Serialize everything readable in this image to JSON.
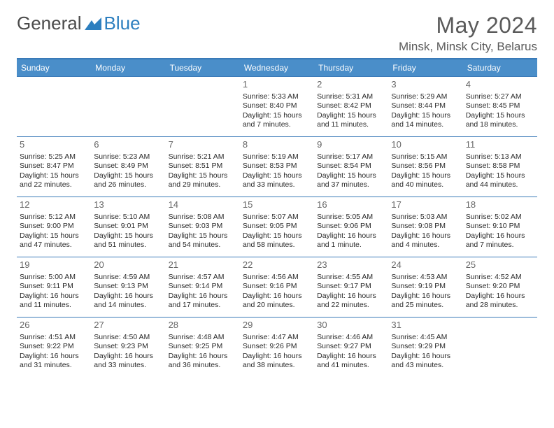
{
  "brand": {
    "part1": "General",
    "part2": "Blue"
  },
  "title": "May 2024",
  "location": "Minsk, Minsk City, Belarus",
  "colors": {
    "header_bg": "#4a8ec9",
    "divider": "#3a7ab8",
    "text": "#2a2a2a",
    "muted": "#666666",
    "logo_gray": "#4a4a4a",
    "logo_blue": "#2d7fbf",
    "background": "#ffffff"
  },
  "weekdays": [
    "Sunday",
    "Monday",
    "Tuesday",
    "Wednesday",
    "Thursday",
    "Friday",
    "Saturday"
  ],
  "font": {
    "family": "Arial",
    "cell_size_pt": 8,
    "daynum_size_pt": 10,
    "title_size_pt": 24,
    "location_size_pt": 13
  },
  "weeks": [
    [
      null,
      null,
      null,
      {
        "day": "1",
        "sunrise": "Sunrise: 5:33 AM",
        "sunset": "Sunset: 8:40 PM",
        "day1": "Daylight: 15 hours",
        "day2": "and 7 minutes."
      },
      {
        "day": "2",
        "sunrise": "Sunrise: 5:31 AM",
        "sunset": "Sunset: 8:42 PM",
        "day1": "Daylight: 15 hours",
        "day2": "and 11 minutes."
      },
      {
        "day": "3",
        "sunrise": "Sunrise: 5:29 AM",
        "sunset": "Sunset: 8:44 PM",
        "day1": "Daylight: 15 hours",
        "day2": "and 14 minutes."
      },
      {
        "day": "4",
        "sunrise": "Sunrise: 5:27 AM",
        "sunset": "Sunset: 8:45 PM",
        "day1": "Daylight: 15 hours",
        "day2": "and 18 minutes."
      }
    ],
    [
      {
        "day": "5",
        "sunrise": "Sunrise: 5:25 AM",
        "sunset": "Sunset: 8:47 PM",
        "day1": "Daylight: 15 hours",
        "day2": "and 22 minutes."
      },
      {
        "day": "6",
        "sunrise": "Sunrise: 5:23 AM",
        "sunset": "Sunset: 8:49 PM",
        "day1": "Daylight: 15 hours",
        "day2": "and 26 minutes."
      },
      {
        "day": "7",
        "sunrise": "Sunrise: 5:21 AM",
        "sunset": "Sunset: 8:51 PM",
        "day1": "Daylight: 15 hours",
        "day2": "and 29 minutes."
      },
      {
        "day": "8",
        "sunrise": "Sunrise: 5:19 AM",
        "sunset": "Sunset: 8:53 PM",
        "day1": "Daylight: 15 hours",
        "day2": "and 33 minutes."
      },
      {
        "day": "9",
        "sunrise": "Sunrise: 5:17 AM",
        "sunset": "Sunset: 8:54 PM",
        "day1": "Daylight: 15 hours",
        "day2": "and 37 minutes."
      },
      {
        "day": "10",
        "sunrise": "Sunrise: 5:15 AM",
        "sunset": "Sunset: 8:56 PM",
        "day1": "Daylight: 15 hours",
        "day2": "and 40 minutes."
      },
      {
        "day": "11",
        "sunrise": "Sunrise: 5:13 AM",
        "sunset": "Sunset: 8:58 PM",
        "day1": "Daylight: 15 hours",
        "day2": "and 44 minutes."
      }
    ],
    [
      {
        "day": "12",
        "sunrise": "Sunrise: 5:12 AM",
        "sunset": "Sunset: 9:00 PM",
        "day1": "Daylight: 15 hours",
        "day2": "and 47 minutes."
      },
      {
        "day": "13",
        "sunrise": "Sunrise: 5:10 AM",
        "sunset": "Sunset: 9:01 PM",
        "day1": "Daylight: 15 hours",
        "day2": "and 51 minutes."
      },
      {
        "day": "14",
        "sunrise": "Sunrise: 5:08 AM",
        "sunset": "Sunset: 9:03 PM",
        "day1": "Daylight: 15 hours",
        "day2": "and 54 minutes."
      },
      {
        "day": "15",
        "sunrise": "Sunrise: 5:07 AM",
        "sunset": "Sunset: 9:05 PM",
        "day1": "Daylight: 15 hours",
        "day2": "and 58 minutes."
      },
      {
        "day": "16",
        "sunrise": "Sunrise: 5:05 AM",
        "sunset": "Sunset: 9:06 PM",
        "day1": "Daylight: 16 hours",
        "day2": "and 1 minute."
      },
      {
        "day": "17",
        "sunrise": "Sunrise: 5:03 AM",
        "sunset": "Sunset: 9:08 PM",
        "day1": "Daylight: 16 hours",
        "day2": "and 4 minutes."
      },
      {
        "day": "18",
        "sunrise": "Sunrise: 5:02 AM",
        "sunset": "Sunset: 9:10 PM",
        "day1": "Daylight: 16 hours",
        "day2": "and 7 minutes."
      }
    ],
    [
      {
        "day": "19",
        "sunrise": "Sunrise: 5:00 AM",
        "sunset": "Sunset: 9:11 PM",
        "day1": "Daylight: 16 hours",
        "day2": "and 11 minutes."
      },
      {
        "day": "20",
        "sunrise": "Sunrise: 4:59 AM",
        "sunset": "Sunset: 9:13 PM",
        "day1": "Daylight: 16 hours",
        "day2": "and 14 minutes."
      },
      {
        "day": "21",
        "sunrise": "Sunrise: 4:57 AM",
        "sunset": "Sunset: 9:14 PM",
        "day1": "Daylight: 16 hours",
        "day2": "and 17 minutes."
      },
      {
        "day": "22",
        "sunrise": "Sunrise: 4:56 AM",
        "sunset": "Sunset: 9:16 PM",
        "day1": "Daylight: 16 hours",
        "day2": "and 20 minutes."
      },
      {
        "day": "23",
        "sunrise": "Sunrise: 4:55 AM",
        "sunset": "Sunset: 9:17 PM",
        "day1": "Daylight: 16 hours",
        "day2": "and 22 minutes."
      },
      {
        "day": "24",
        "sunrise": "Sunrise: 4:53 AM",
        "sunset": "Sunset: 9:19 PM",
        "day1": "Daylight: 16 hours",
        "day2": "and 25 minutes."
      },
      {
        "day": "25",
        "sunrise": "Sunrise: 4:52 AM",
        "sunset": "Sunset: 9:20 PM",
        "day1": "Daylight: 16 hours",
        "day2": "and 28 minutes."
      }
    ],
    [
      {
        "day": "26",
        "sunrise": "Sunrise: 4:51 AM",
        "sunset": "Sunset: 9:22 PM",
        "day1": "Daylight: 16 hours",
        "day2": "and 31 minutes."
      },
      {
        "day": "27",
        "sunrise": "Sunrise: 4:50 AM",
        "sunset": "Sunset: 9:23 PM",
        "day1": "Daylight: 16 hours",
        "day2": "and 33 minutes."
      },
      {
        "day": "28",
        "sunrise": "Sunrise: 4:48 AM",
        "sunset": "Sunset: 9:25 PM",
        "day1": "Daylight: 16 hours",
        "day2": "and 36 minutes."
      },
      {
        "day": "29",
        "sunrise": "Sunrise: 4:47 AM",
        "sunset": "Sunset: 9:26 PM",
        "day1": "Daylight: 16 hours",
        "day2": "and 38 minutes."
      },
      {
        "day": "30",
        "sunrise": "Sunrise: 4:46 AM",
        "sunset": "Sunset: 9:27 PM",
        "day1": "Daylight: 16 hours",
        "day2": "and 41 minutes."
      },
      {
        "day": "31",
        "sunrise": "Sunrise: 4:45 AM",
        "sunset": "Sunset: 9:29 PM",
        "day1": "Daylight: 16 hours",
        "day2": "and 43 minutes."
      },
      null
    ]
  ]
}
